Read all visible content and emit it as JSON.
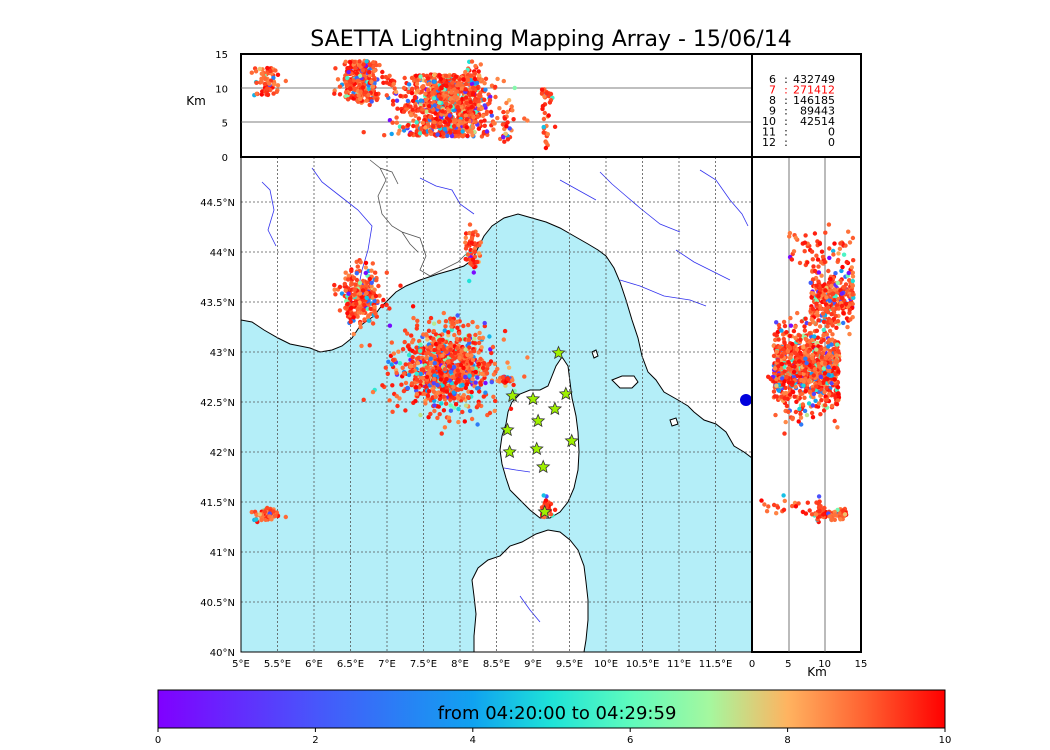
{
  "title": "SAETTA Lightning Mapping Array - 15/06/14",
  "colors": {
    "sea": "#b4eef8",
    "land": "#ffffff",
    "coast": "#000000",
    "rivers": "#3333ee",
    "borders": "#555555",
    "grid": "#555555",
    "station_fill": "#9ef000",
    "station_stroke": "#333333",
    "highlight": "#ff0000"
  },
  "chart_data": {
    "type": "scatter",
    "title": "SAETTA Lightning Mapping Array - 15/06/14",
    "map": {
      "lon_range": [
        5,
        12
      ],
      "lat_range": [
        40,
        44.95
      ],
      "lon_ticks": [
        "5°E",
        "5.5°E",
        "6°E",
        "6.5°E",
        "7°E",
        "7.5°E",
        "8°E",
        "8.5°E",
        "9°E",
        "9.5°E",
        "10°E",
        "10.5°E",
        "11°E",
        "11.5°E"
      ],
      "lat_ticks": [
        "40°N",
        "40.5°N",
        "41°N",
        "41.5°N",
        "42°N",
        "42.5°N",
        "43°N",
        "43.5°N",
        "44°N",
        "44.5°N"
      ]
    },
    "altitude_axis": {
      "label": "Km",
      "range": [
        0,
        15
      ],
      "ticks": [
        "0",
        "5",
        "10",
        "15"
      ]
    },
    "stations": [
      {
        "lon": 9.35,
        "lat": 42.99
      },
      {
        "lon": 8.72,
        "lat": 42.56
      },
      {
        "lon": 9.0,
        "lat": 42.53
      },
      {
        "lon": 9.45,
        "lat": 42.58
      },
      {
        "lon": 9.3,
        "lat": 42.43
      },
      {
        "lon": 9.07,
        "lat": 42.31
      },
      {
        "lon": 8.65,
        "lat": 42.22
      },
      {
        "lon": 9.53,
        "lat": 42.11
      },
      {
        "lon": 9.05,
        "lat": 42.03
      },
      {
        "lon": 8.68,
        "lat": 42.0
      },
      {
        "lon": 9.14,
        "lat": 41.85
      },
      {
        "lon": 9.16,
        "lat": 41.4
      }
    ],
    "clusters": [
      {
        "lon_c": 7.8,
        "lat_c": 42.83,
        "lon_sd": 0.33,
        "lat_sd": 0.2,
        "alt_lo": 3,
        "alt_hi": 12,
        "n": 900
      },
      {
        "lon_c": 6.65,
        "lat_c": 43.55,
        "lon_sd": 0.14,
        "lat_sd": 0.14,
        "alt_lo": 8,
        "alt_hi": 14,
        "n": 300
      },
      {
        "lon_c": 5.35,
        "lat_c": 41.38,
        "lon_sd": 0.08,
        "lat_sd": 0.03,
        "alt_lo": 9,
        "alt_hi": 13,
        "n": 70
      },
      {
        "lon_c": 8.17,
        "lat_c": 44.02,
        "lon_sd": 0.05,
        "lat_sd": 0.12,
        "alt_lo": 5,
        "alt_hi": 14,
        "n": 60
      },
      {
        "lon_c": 9.17,
        "lat_c": 41.45,
        "lon_sd": 0.04,
        "lat_sd": 0.05,
        "alt_lo": 1,
        "alt_hi": 10,
        "n": 35
      },
      {
        "lon_c": 8.65,
        "lat_c": 42.72,
        "lon_sd": 0.05,
        "lat_sd": 0.03,
        "alt_lo": 2,
        "alt_hi": 8,
        "n": 25
      },
      {
        "lon_c": 7.9,
        "lat_c": 43.3,
        "lon_sd": 0.03,
        "lat_sd": 0.03,
        "alt_lo": 7,
        "alt_hi": 12,
        "n": 15
      }
    ],
    "counts": [
      {
        "station_count": "6",
        "value": "432749",
        "highlight": false
      },
      {
        "station_count": "7",
        "value": "271412",
        "highlight": true
      },
      {
        "station_count": "8",
        "value": "146185",
        "highlight": false
      },
      {
        "station_count": "9",
        "value": "89443",
        "highlight": false
      },
      {
        "station_count": "10",
        "value": "42514",
        "highlight": false
      },
      {
        "station_count": "11",
        "value": "0",
        "highlight": false
      },
      {
        "station_count": "12",
        "value": "0",
        "highlight": false
      }
    ],
    "colorbar": {
      "label": "from 04:20:00 to 04:29:59",
      "range": [
        0,
        10
      ],
      "ticks": [
        "0",
        "2",
        "4",
        "6",
        "8",
        "10"
      ],
      "colormap": "rainbow"
    }
  }
}
